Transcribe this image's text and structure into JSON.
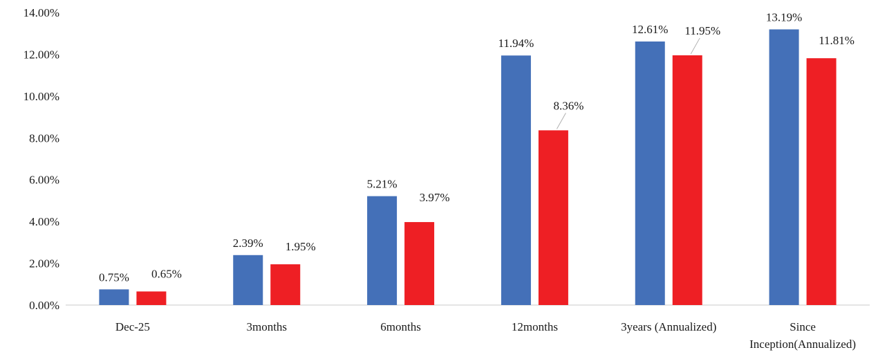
{
  "chart_data": {
    "type": "bar",
    "categories": [
      "Dec-25",
      "3months",
      "6months",
      "12months",
      "3years (Annualized)",
      "Since Inception(Annualized)"
    ],
    "category_lines": [
      [
        "Dec-25"
      ],
      [
        "3months"
      ],
      [
        "6months"
      ],
      [
        "12months"
      ],
      [
        "3years (Annualized)"
      ],
      [
        "Since",
        "Inception(Annualized)"
      ]
    ],
    "series": [
      {
        "values": [
          0.75,
          2.39,
          5.21,
          11.94,
          12.61,
          13.19
        ],
        "color": "#4470b8",
        "labels": [
          "0.75%",
          "2.39%",
          "5.21%",
          "11.94%",
          "12.61%",
          "13.19%"
        ]
      },
      {
        "values": [
          0.65,
          1.95,
          3.97,
          8.36,
          11.95,
          11.81
        ],
        "color": "#ee1f24",
        "labels": [
          "0.65%",
          "1.95%",
          "3.97%",
          "8.36%",
          "11.95%",
          "11.81%"
        ]
      }
    ],
    "y_ticks": [
      "0.00%",
      "2.00%",
      "4.00%",
      "6.00%",
      "8.00%",
      "10.00%",
      "12.00%",
      "14.00%"
    ],
    "ylim": [
      0,
      14
    ],
    "title": "",
    "xlabel": "",
    "ylabel": "",
    "grid": false,
    "legend": "none"
  }
}
